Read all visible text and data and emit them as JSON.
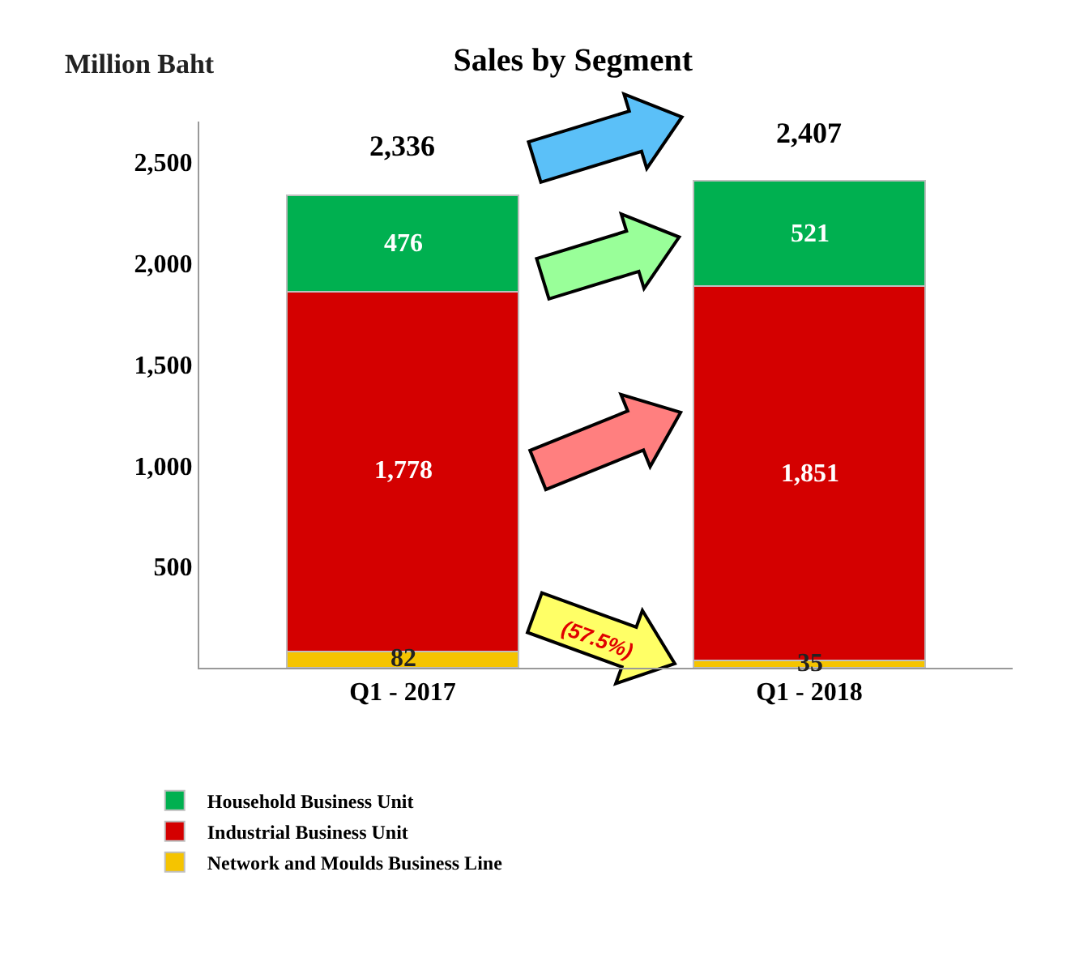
{
  "chart_data": {
    "type": "bar",
    "title": "Sales by Segment",
    "ylabel": "Million Baht",
    "stacked": true,
    "categories": [
      "Q1 - 2017",
      "Q1 - 2018"
    ],
    "series": [
      {
        "name": "Network and Moulds Business Line",
        "color": "#f5c400",
        "values": [
          82,
          35
        ],
        "value_labels": [
          "82",
          "35"
        ]
      },
      {
        "name": "Industrial Business Unit",
        "color": "#d40000",
        "values": [
          1778,
          1851
        ],
        "value_labels": [
          "1,778",
          "1,851"
        ]
      },
      {
        "name": "Household Business Unit",
        "color": "#00b050",
        "values": [
          476,
          521
        ],
        "value_labels": [
          "476",
          "521"
        ]
      }
    ],
    "totals": [
      "2,336",
      "2,407"
    ],
    "ylim": [
      0,
      2700
    ],
    "yticks": [
      {
        "value": 0,
        "label": null
      },
      {
        "value": 500,
        "label": "500"
      },
      {
        "value": 1000,
        "label": "1,000"
      },
      {
        "value": 1500,
        "label": "1,500"
      },
      {
        "value": 2000,
        "label": "2,000"
      },
      {
        "value": 2500,
        "label": "2,500"
      }
    ],
    "grid": false,
    "legend": "bottom left",
    "annotations": [
      "(57.5%)"
    ]
  }
}
